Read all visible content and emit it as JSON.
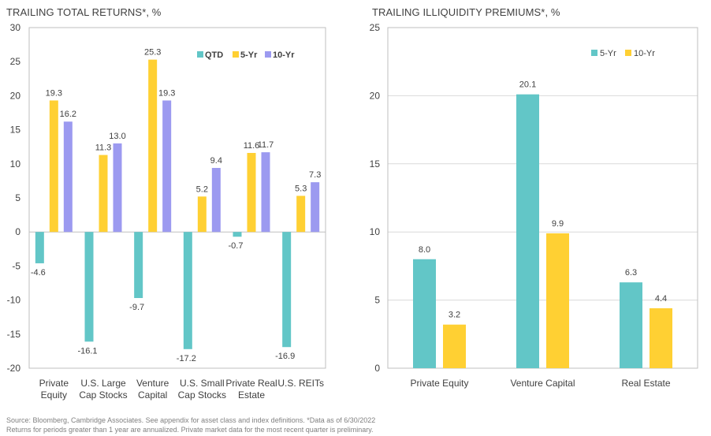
{
  "titles": {
    "left": "TRAILING TOTAL RETURNS*, %",
    "right": "TRAILING ILLIQUIDITY PREMIUMS*, %"
  },
  "footnotes": {
    "line1": "Source: Bloomberg, Cambridge Associates. See appendix for asset class and index definitions. *Data as of 6/30/2022",
    "line2": "Returns for periods greater than 1 year are annualized. Private market data for the most recent quarter is preliminary."
  },
  "colors": {
    "qtd": "#62C6C7",
    "five_yr": "#FFD033",
    "ten_yr": "#9C9AF0",
    "gridline": "#D9D9D9",
    "axis": "#BFBFBF"
  },
  "chart_data": [
    {
      "type": "bar",
      "title": "TRAILING TOTAL RETURNS*, %",
      "categories": [
        [
          "Private",
          "Equity"
        ],
        [
          "U.S. Large",
          "Cap Stocks"
        ],
        [
          "Venture",
          "Capital"
        ],
        [
          "U.S. Small",
          "Cap Stocks"
        ],
        [
          "Private Real",
          "Estate"
        ],
        [
          "U.S. REITs"
        ]
      ],
      "series": [
        {
          "name": "QTD",
          "values": [
            -4.6,
            -16.1,
            -9.7,
            -17.2,
            -0.7,
            -16.9
          ]
        },
        {
          "name": "5-Yr",
          "values": [
            19.3,
            11.3,
            25.3,
            5.2,
            11.6,
            5.3
          ]
        },
        {
          "name": "10-Yr",
          "values": [
            16.2,
            13.0,
            19.3,
            9.4,
            11.7,
            7.3
          ]
        }
      ],
      "ylim": [
        -20,
        30
      ],
      "yticks": [
        -20,
        -15,
        -10,
        -5,
        0,
        5,
        10,
        15,
        20,
        25,
        30
      ],
      "grid": false,
      "legend": "top-right"
    },
    {
      "type": "bar",
      "title": "TRAILING ILLIQUIDITY PREMIUMS*, %",
      "categories": [
        [
          "Private Equity"
        ],
        [
          "Venture Capital"
        ],
        [
          "Real Estate"
        ]
      ],
      "series": [
        {
          "name": "5-Yr",
          "values": [
            8.0,
            20.1,
            6.3
          ]
        },
        {
          "name": "10-Yr",
          "values": [
            3.2,
            9.9,
            4.4
          ]
        }
      ],
      "ylim": [
        0,
        25
      ],
      "yticks": [
        0,
        5,
        10,
        15,
        20,
        25
      ],
      "grid": true,
      "legend": "top-left"
    }
  ]
}
